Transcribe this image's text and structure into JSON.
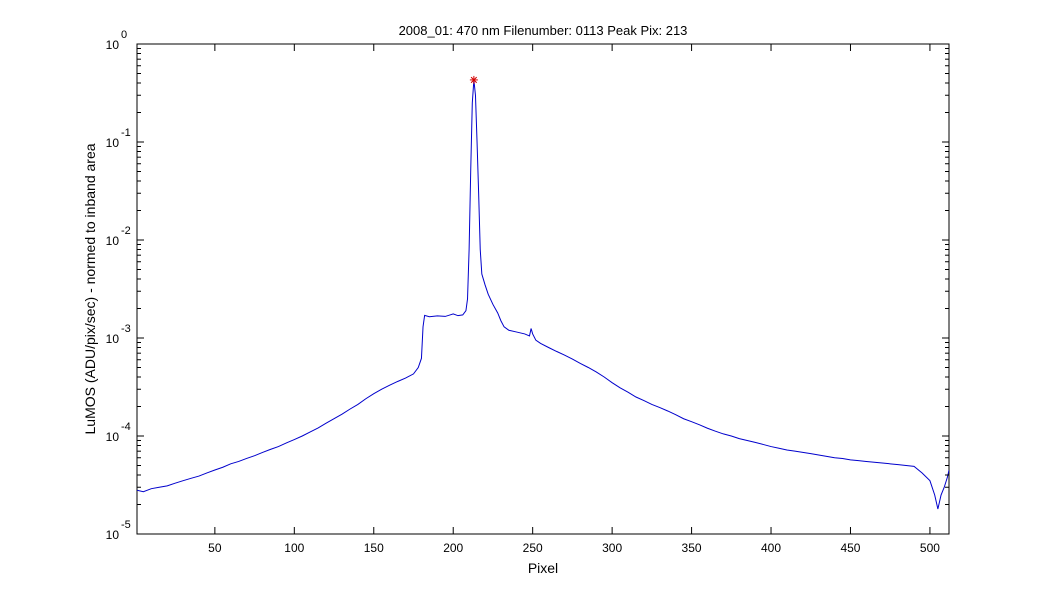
{
  "chart_data": {
    "type": "line",
    "title": "2008_01: 470 nm  Filenumber: 0113 Peak Pix: 213",
    "xlabel": "Pixel",
    "ylabel": "LuMOS (ADU/pix/sec) - normed to inband area",
    "xlim": [
      1,
      512
    ],
    "ylim": [
      1e-05,
      1
    ],
    "yscale": "log",
    "grid": false,
    "xticks": [
      50,
      100,
      150,
      200,
      250,
      300,
      350,
      400,
      450,
      500
    ],
    "yticks": [
      {
        "value": 1,
        "base": "10",
        "exp": "0"
      },
      {
        "value": 0.1,
        "base": "10",
        "exp": "-1"
      },
      {
        "value": 0.01,
        "base": "10",
        "exp": "-2"
      },
      {
        "value": 0.001,
        "base": "10",
        "exp": "-3"
      },
      {
        "value": 0.0001,
        "base": "10",
        "exp": "-4"
      },
      {
        "value": 1e-05,
        "base": "10",
        "exp": "-5"
      }
    ],
    "series": [
      {
        "color": "#0000cc",
        "points": [
          [
            1,
            2.8e-05
          ],
          [
            5,
            2.7e-05
          ],
          [
            10,
            2.9e-05
          ],
          [
            15,
            3e-05
          ],
          [
            20,
            3.1e-05
          ],
          [
            25,
            3.3e-05
          ],
          [
            30,
            3.5e-05
          ],
          [
            35,
            3.7e-05
          ],
          [
            40,
            3.9e-05
          ],
          [
            45,
            4.2e-05
          ],
          [
            50,
            4.5e-05
          ],
          [
            55,
            4.8e-05
          ],
          [
            60,
            5.2e-05
          ],
          [
            65,
            5.5e-05
          ],
          [
            70,
            5.9e-05
          ],
          [
            75,
            6.3e-05
          ],
          [
            80,
            6.8e-05
          ],
          [
            85,
            7.3e-05
          ],
          [
            90,
            7.8e-05
          ],
          [
            95,
            8.5e-05
          ],
          [
            100,
            9.2e-05
          ],
          [
            105,
            0.0001
          ],
          [
            110,
            0.00011
          ],
          [
            115,
            0.000121
          ],
          [
            120,
            0.000135
          ],
          [
            125,
            0.00015
          ],
          [
            130,
            0.000167
          ],
          [
            135,
            0.000188
          ],
          [
            140,
            0.00021
          ],
          [
            145,
            0.00024
          ],
          [
            150,
            0.00027
          ],
          [
            155,
            0.0003
          ],
          [
            160,
            0.00033
          ],
          [
            165,
            0.00036
          ],
          [
            170,
            0.00039
          ],
          [
            175,
            0.00043
          ],
          [
            178,
            0.0005
          ],
          [
            180,
            0.00062
          ],
          [
            181,
            0.0013
          ],
          [
            182,
            0.0017
          ],
          [
            185,
            0.00165
          ],
          [
            190,
            0.00168
          ],
          [
            195,
            0.00166
          ],
          [
            198,
            0.00172
          ],
          [
            200,
            0.00176
          ],
          [
            203,
            0.00169
          ],
          [
            206,
            0.00172
          ],
          [
            208,
            0.0019
          ],
          [
            209,
            0.0025
          ],
          [
            210,
            0.008
          ],
          [
            211,
            0.05
          ],
          [
            212,
            0.25
          ],
          [
            213,
            0.43
          ],
          [
            214,
            0.3
          ],
          [
            215,
            0.1
          ],
          [
            216,
            0.03
          ],
          [
            217,
            0.008
          ],
          [
            218,
            0.0045
          ],
          [
            220,
            0.0035
          ],
          [
            222,
            0.0028
          ],
          [
            225,
            0.0022
          ],
          [
            228,
            0.0018
          ],
          [
            230,
            0.0015
          ],
          [
            232,
            0.0013
          ],
          [
            235,
            0.0012
          ],
          [
            240,
            0.00115
          ],
          [
            245,
            0.0011
          ],
          [
            248,
            0.00105
          ],
          [
            249,
            0.00125
          ],
          [
            250,
            0.0011
          ],
          [
            252,
            0.00095
          ],
          [
            255,
            0.00088
          ],
          [
            260,
            0.0008
          ],
          [
            265,
            0.00073
          ],
          [
            270,
            0.00067
          ],
          [
            275,
            0.00061
          ],
          [
            280,
            0.00055
          ],
          [
            285,
            0.0005
          ],
          [
            290,
            0.00045
          ],
          [
            295,
            0.0004
          ],
          [
            300,
            0.00035
          ],
          [
            305,
            0.00031
          ],
          [
            310,
            0.00028
          ],
          [
            315,
            0.00025
          ],
          [
            320,
            0.00023
          ],
          [
            325,
            0.00021
          ],
          [
            330,
            0.000195
          ],
          [
            335,
            0.00018
          ],
          [
            340,
            0.000165
          ],
          [
            345,
            0.00015
          ],
          [
            350,
            0.00014
          ],
          [
            355,
            0.00013
          ],
          [
            360,
            0.00012
          ],
          [
            365,
            0.000112
          ],
          [
            370,
            0.000105
          ],
          [
            375,
            0.0001
          ],
          [
            380,
            9.4e-05
          ],
          [
            385,
            9e-05
          ],
          [
            390,
            8.6e-05
          ],
          [
            395,
            8.2e-05
          ],
          [
            400,
            7.8e-05
          ],
          [
            405,
            7.5e-05
          ],
          [
            410,
            7.2e-05
          ],
          [
            415,
            7e-05
          ],
          [
            420,
            6.8e-05
          ],
          [
            425,
            6.6e-05
          ],
          [
            430,
            6.4e-05
          ],
          [
            435,
            6.2e-05
          ],
          [
            440,
            6e-05
          ],
          [
            445,
            5.9e-05
          ],
          [
            450,
            5.7e-05
          ],
          [
            455,
            5.6e-05
          ],
          [
            460,
            5.5e-05
          ],
          [
            465,
            5.4e-05
          ],
          [
            470,
            5.3e-05
          ],
          [
            475,
            5.2e-05
          ],
          [
            480,
            5.1e-05
          ],
          [
            485,
            5e-05
          ],
          [
            490,
            4.9e-05
          ],
          [
            495,
            4.2e-05
          ],
          [
            500,
            3.5e-05
          ],
          [
            503,
            2.5e-05
          ],
          [
            505,
            1.8e-05
          ],
          [
            507,
            2.5e-05
          ],
          [
            509,
            3e-05
          ],
          [
            511,
            3.8e-05
          ],
          [
            512,
            4.5e-05
          ]
        ]
      }
    ],
    "peak_marker": {
      "x": 213,
      "y": 0.43,
      "symbol": "*",
      "color": "#d40000"
    }
  }
}
